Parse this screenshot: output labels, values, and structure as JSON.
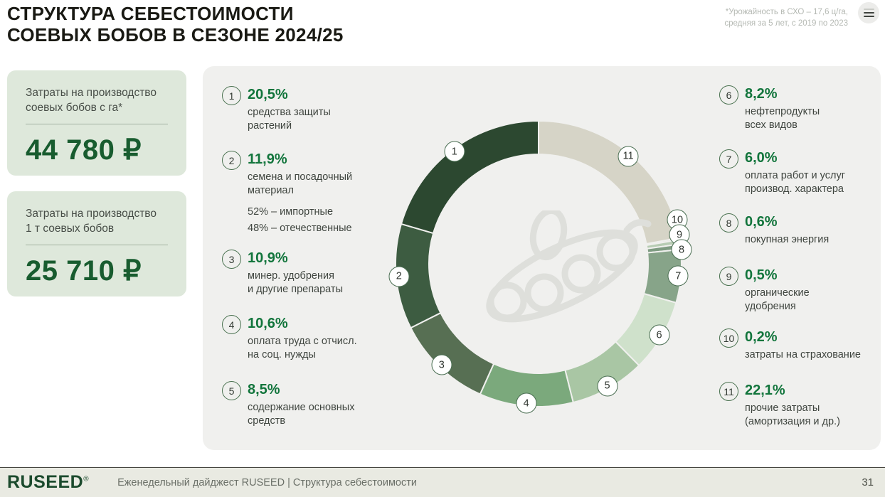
{
  "header": {
    "title_line1": "СТРУКТУРА СЕБЕСТОИМОСТИ",
    "title_line2": "СОЕВЫХ БОБОВ В СЕЗОНЕ 2024/25",
    "note_line1": "*Урожайность в СХО – 17,6 ц/га,",
    "note_line2": "средняя за 5 лет, с 2019 по 2023"
  },
  "cards": [
    {
      "label_line1": "Затраты на производство",
      "label_line2": "соевых бобов с га*",
      "value": "44 780 ₽"
    },
    {
      "label_line1": "Затраты на производство",
      "label_line2": "1 т соевых бобов",
      "value": "25 710 ₽"
    }
  ],
  "chart_data": {
    "type": "pie",
    "donut": true,
    "title": "Структура себестоимости соевых бобов в сезоне 2024/25",
    "units": "%",
    "start": "12-oclock",
    "numbering_direction": "counterclockwise",
    "segments": [
      {
        "id": 1,
        "value": 20.5,
        "percent_label": "20,5%",
        "label_lines": [
          "средства защиты",
          "растений"
        ],
        "color": "#2c4830"
      },
      {
        "id": 2,
        "value": 11.9,
        "percent_label": "11,9%",
        "label_lines": [
          "семена и посадочный",
          "материал"
        ],
        "sublines": [
          "52% – импортные",
          "48% – отечественные"
        ],
        "color": "#3d5c41"
      },
      {
        "id": 3,
        "value": 10.9,
        "percent_label": "10,9%",
        "label_lines": [
          "минер. удобрения",
          "и другие препараты"
        ],
        "color": "#576f53"
      },
      {
        "id": 4,
        "value": 10.6,
        "percent_label": "10,6%",
        "label_lines": [
          "оплата труда с отчисл.",
          "на соц. нужды"
        ],
        "color": "#7ba97c"
      },
      {
        "id": 5,
        "value": 8.5,
        "percent_label": "8,5%",
        "label_lines": [
          "содержание основных",
          "средств"
        ],
        "color": "#a9c6a4"
      },
      {
        "id": 6,
        "value": 8.2,
        "percent_label": "8,2%",
        "label_lines": [
          "нефтепродукты",
          "всех видов"
        ],
        "color": "#cfe1cb"
      },
      {
        "id": 7,
        "value": 6.0,
        "percent_label": "6,0%",
        "label_lines": [
          "оплата работ и услуг",
          "производ. характера"
        ],
        "color": "#87a489"
      },
      {
        "id": 8,
        "value": 0.6,
        "percent_label": "0,6%",
        "label_lines": [
          "покупная энергия"
        ],
        "color": "#7f9c82"
      },
      {
        "id": 9,
        "value": 0.5,
        "percent_label": "0,5%",
        "label_lines": [
          "органические",
          "удобрения"
        ],
        "color": "#b7ccb3"
      },
      {
        "id": 10,
        "value": 0.2,
        "percent_label": "0,2%",
        "label_lines": [
          "затраты на страхование"
        ],
        "color": "#dfe3d8"
      },
      {
        "id": 11,
        "value": 22.1,
        "percent_label": "22,1%",
        "label_lines": [
          "прочие затраты",
          "(амортизация и др.)"
        ],
        "color": "#d6d4c7"
      }
    ]
  },
  "footer": {
    "logo": "RUSEED",
    "reg_mark": "®",
    "text": "Еженедельный дайджест RUSEED  |  Структура себестоимости",
    "page": "31"
  }
}
